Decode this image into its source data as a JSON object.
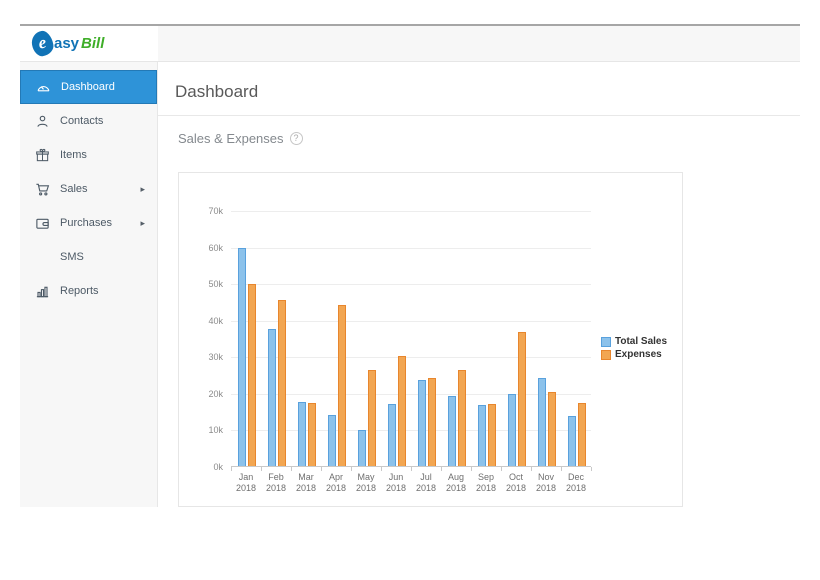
{
  "logo": {
    "e": "e",
    "part1": "asy",
    "part2": "Bill"
  },
  "icons": {
    "chevron_right": "▸"
  },
  "colors": {
    "accent_blue": "#2e93d8",
    "logo_blue": "#1173b6",
    "logo_green": "#3fae29",
    "sales_fill": "#8cc2eb",
    "sales_border": "#59a1dd",
    "expenses_fill": "#f2a652",
    "expenses_border": "#e8862d"
  },
  "sidebar": {
    "items": [
      {
        "label": "Dashboard",
        "icon": "gauge-icon",
        "active": true,
        "has_submenu": false
      },
      {
        "label": "Contacts",
        "icon": "person-icon",
        "active": false,
        "has_submenu": false
      },
      {
        "label": "Items",
        "icon": "gift-icon",
        "active": false,
        "has_submenu": false
      },
      {
        "label": "Sales",
        "icon": "cart-icon",
        "active": false,
        "has_submenu": true
      },
      {
        "label": "Purchases",
        "icon": "wallet-icon",
        "active": false,
        "has_submenu": true
      },
      {
        "label": "SMS",
        "icon": null,
        "active": false,
        "has_submenu": false
      },
      {
        "label": "Reports",
        "icon": "bar-chart-icon",
        "active": false,
        "has_submenu": false
      }
    ]
  },
  "header": {
    "title": "Dashboard"
  },
  "section": {
    "title": "Sales & Expenses",
    "help_text": "?"
  },
  "chart_data": {
    "type": "bar",
    "title": "Sales & Expenses",
    "categories": [
      "Jan",
      "Feb",
      "Mar",
      "Apr",
      "May",
      "Jun",
      "Jul",
      "Aug",
      "Sep",
      "Oct",
      "Nov",
      "Dec"
    ],
    "category_year": "2018",
    "series": [
      {
        "name": "Total Sales",
        "fill": "#8cc2eb",
        "border": "#59a1dd",
        "values": [
          59500,
          37500,
          17500,
          14000,
          9800,
          17000,
          23500,
          19200,
          16600,
          19800,
          24000,
          13600
        ]
      },
      {
        "name": "Expenses",
        "fill": "#f2a652",
        "border": "#e8862d",
        "values": [
          49800,
          45300,
          17200,
          44000,
          26300,
          30000,
          24000,
          26300,
          17000,
          36700,
          20200,
          17300
        ]
      }
    ],
    "ylim": [
      0,
      70000
    ],
    "ytick_step": 10000,
    "ytick_labels": [
      "0k",
      "10k",
      "20k",
      "30k",
      "40k",
      "50k",
      "60k",
      "70k"
    ],
    "grid": true,
    "legend_position": "right"
  }
}
